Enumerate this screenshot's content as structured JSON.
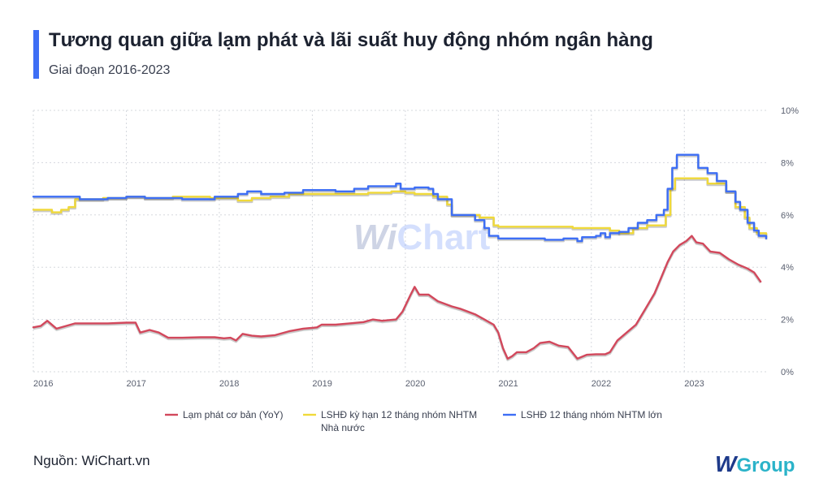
{
  "header": {
    "title": "Tương quan giữa lạm phát và lãi suất huy động nhóm ngân hàng",
    "subtitle": "Giai đoạn 2016-2023"
  },
  "footer": {
    "source": "Nguồn: WiChart.vn",
    "logo_w": "W",
    "logo_group": "Group"
  },
  "watermark": {
    "w": "Wi",
    "rest": "Chart"
  },
  "colors": {
    "accent": "#3d6ef5",
    "inflation": "#d2485c",
    "state_banks": "#f0d93a",
    "large_banks": "#3d6ef5"
  },
  "chart_data": {
    "type": "line",
    "x_ticks": [
      "2016",
      "2017",
      "2018",
      "2019",
      "2020",
      "2021",
      "2022",
      "2023"
    ],
    "y_ticks": [
      "0%",
      "2%",
      "4%",
      "6%",
      "8%",
      "10%"
    ],
    "xlim": [
      2016.0,
      2023.88
    ],
    "ylim": [
      0,
      10
    ],
    "grid": true,
    "legend_position": "bottom",
    "series": [
      {
        "name": "Lạm phát cơ bản (YoY)",
        "color": "#d2485c",
        "step": false,
        "points": [
          [
            2016.0,
            1.7
          ],
          [
            2016.08,
            1.75
          ],
          [
            2016.15,
            1.95
          ],
          [
            2016.25,
            1.65
          ],
          [
            2016.35,
            1.75
          ],
          [
            2016.45,
            1.85
          ],
          [
            2016.6,
            1.85
          ],
          [
            2016.8,
            1.85
          ],
          [
            2017.0,
            1.88
          ],
          [
            2017.1,
            1.88
          ],
          [
            2017.15,
            1.5
          ],
          [
            2017.25,
            1.6
          ],
          [
            2017.35,
            1.5
          ],
          [
            2017.45,
            1.3
          ],
          [
            2017.6,
            1.3
          ],
          [
            2017.8,
            1.32
          ],
          [
            2017.95,
            1.32
          ],
          [
            2018.05,
            1.28
          ],
          [
            2018.12,
            1.3
          ],
          [
            2018.18,
            1.2
          ],
          [
            2018.25,
            1.45
          ],
          [
            2018.35,
            1.38
          ],
          [
            2018.45,
            1.35
          ],
          [
            2018.6,
            1.4
          ],
          [
            2018.75,
            1.55
          ],
          [
            2018.9,
            1.65
          ],
          [
            2019.0,
            1.68
          ],
          [
            2019.05,
            1.7
          ],
          [
            2019.1,
            1.8
          ],
          [
            2019.25,
            1.8
          ],
          [
            2019.4,
            1.85
          ],
          [
            2019.55,
            1.9
          ],
          [
            2019.65,
            2.0
          ],
          [
            2019.75,
            1.95
          ],
          [
            2019.9,
            2.0
          ],
          [
            2019.97,
            2.3
          ],
          [
            2020.05,
            2.9
          ],
          [
            2020.1,
            3.25
          ],
          [
            2020.15,
            2.95
          ],
          [
            2020.25,
            2.95
          ],
          [
            2020.35,
            2.7
          ],
          [
            2020.5,
            2.5
          ],
          [
            2020.6,
            2.4
          ],
          [
            2020.75,
            2.2
          ],
          [
            2020.85,
            2.0
          ],
          [
            2020.95,
            1.8
          ],
          [
            2021.0,
            1.5
          ],
          [
            2021.05,
            0.9
          ],
          [
            2021.1,
            0.5
          ],
          [
            2021.15,
            0.6
          ],
          [
            2021.2,
            0.75
          ],
          [
            2021.3,
            0.75
          ],
          [
            2021.38,
            0.9
          ],
          [
            2021.45,
            1.1
          ],
          [
            2021.55,
            1.15
          ],
          [
            2021.65,
            1.0
          ],
          [
            2021.75,
            0.95
          ],
          [
            2021.85,
            0.5
          ],
          [
            2021.95,
            0.65
          ],
          [
            2022.05,
            0.67
          ],
          [
            2022.15,
            0.67
          ],
          [
            2022.2,
            0.75
          ],
          [
            2022.28,
            1.2
          ],
          [
            2022.38,
            1.5
          ],
          [
            2022.48,
            1.8
          ],
          [
            2022.58,
            2.4
          ],
          [
            2022.68,
            3.0
          ],
          [
            2022.75,
            3.6
          ],
          [
            2022.82,
            4.2
          ],
          [
            2022.88,
            4.6
          ],
          [
            2022.95,
            4.85
          ],
          [
            2023.02,
            5.0
          ],
          [
            2023.08,
            5.2
          ],
          [
            2023.13,
            4.95
          ],
          [
            2023.2,
            4.9
          ],
          [
            2023.28,
            4.6
          ],
          [
            2023.38,
            4.55
          ],
          [
            2023.48,
            4.3
          ],
          [
            2023.58,
            4.1
          ],
          [
            2023.68,
            3.95
          ],
          [
            2023.75,
            3.8
          ],
          [
            2023.82,
            3.45
          ]
        ]
      },
      {
        "name": "LSHĐ kỳ hạn 12 tháng nhóm NHTM Nhà nước",
        "color": "#f0d93a",
        "step": true,
        "points": [
          [
            2016.0,
            6.2
          ],
          [
            2016.2,
            6.1
          ],
          [
            2016.3,
            6.2
          ],
          [
            2016.38,
            6.3
          ],
          [
            2016.45,
            6.6
          ],
          [
            2016.6,
            6.6
          ],
          [
            2016.75,
            6.65
          ],
          [
            2017.0,
            6.7
          ],
          [
            2017.2,
            6.65
          ],
          [
            2017.5,
            6.7
          ],
          [
            2017.9,
            6.65
          ],
          [
            2018.2,
            6.55
          ],
          [
            2018.35,
            6.65
          ],
          [
            2018.55,
            6.7
          ],
          [
            2018.75,
            6.8
          ],
          [
            2019.0,
            6.8
          ],
          [
            2019.3,
            6.8
          ],
          [
            2019.6,
            6.85
          ],
          [
            2019.85,
            6.9
          ],
          [
            2020.0,
            6.85
          ],
          [
            2020.1,
            6.8
          ],
          [
            2020.3,
            6.7
          ],
          [
            2020.45,
            6.4
          ],
          [
            2020.5,
            6.0
          ],
          [
            2020.8,
            5.9
          ],
          [
            2020.95,
            5.6
          ],
          [
            2021.0,
            5.55
          ],
          [
            2021.5,
            5.55
          ],
          [
            2021.8,
            5.5
          ],
          [
            2022.1,
            5.5
          ],
          [
            2022.2,
            5.4
          ],
          [
            2022.3,
            5.3
          ],
          [
            2022.45,
            5.5
          ],
          [
            2022.6,
            5.6
          ],
          [
            2022.8,
            6.0
          ],
          [
            2022.85,
            7.0
          ],
          [
            2022.9,
            7.4
          ],
          [
            2023.2,
            7.4
          ],
          [
            2023.25,
            7.2
          ],
          [
            2023.45,
            6.9
          ],
          [
            2023.55,
            6.3
          ],
          [
            2023.65,
            5.9
          ],
          [
            2023.7,
            5.5
          ],
          [
            2023.78,
            5.3
          ],
          [
            2023.88,
            5.2
          ]
        ]
      },
      {
        "name": "LSHĐ 12 tháng nhóm NHTM lớn",
        "color": "#3d6ef5",
        "step": true,
        "points": [
          [
            2016.0,
            6.7
          ],
          [
            2016.5,
            6.6
          ],
          [
            2016.8,
            6.65
          ],
          [
            2017.0,
            6.7
          ],
          [
            2017.2,
            6.65
          ],
          [
            2017.6,
            6.6
          ],
          [
            2017.95,
            6.7
          ],
          [
            2018.2,
            6.8
          ],
          [
            2018.3,
            6.9
          ],
          [
            2018.45,
            6.8
          ],
          [
            2018.7,
            6.85
          ],
          [
            2018.9,
            6.95
          ],
          [
            2019.25,
            6.9
          ],
          [
            2019.45,
            7.0
          ],
          [
            2019.6,
            7.1
          ],
          [
            2019.9,
            7.2
          ],
          [
            2019.95,
            7.0
          ],
          [
            2020.1,
            7.05
          ],
          [
            2020.25,
            7.0
          ],
          [
            2020.3,
            6.8
          ],
          [
            2020.35,
            6.6
          ],
          [
            2020.5,
            6.0
          ],
          [
            2020.75,
            5.8
          ],
          [
            2020.85,
            5.5
          ],
          [
            2020.9,
            5.2
          ],
          [
            2021.0,
            5.1
          ],
          [
            2021.5,
            5.05
          ],
          [
            2021.7,
            5.1
          ],
          [
            2021.85,
            5.0
          ],
          [
            2021.9,
            5.15
          ],
          [
            2022.05,
            5.2
          ],
          [
            2022.1,
            5.3
          ],
          [
            2022.15,
            5.15
          ],
          [
            2022.2,
            5.3
          ],
          [
            2022.3,
            5.35
          ],
          [
            2022.4,
            5.5
          ],
          [
            2022.5,
            5.7
          ],
          [
            2022.6,
            5.8
          ],
          [
            2022.7,
            6.0
          ],
          [
            2022.78,
            6.2
          ],
          [
            2022.82,
            7.0
          ],
          [
            2022.87,
            7.8
          ],
          [
            2022.92,
            8.3
          ],
          [
            2023.08,
            8.3
          ],
          [
            2023.15,
            7.8
          ],
          [
            2023.25,
            7.6
          ],
          [
            2023.35,
            7.3
          ],
          [
            2023.45,
            6.9
          ],
          [
            2023.55,
            6.5
          ],
          [
            2023.6,
            6.2
          ],
          [
            2023.68,
            5.7
          ],
          [
            2023.75,
            5.4
          ],
          [
            2023.8,
            5.2
          ],
          [
            2023.88,
            5.1
          ]
        ]
      }
    ]
  }
}
